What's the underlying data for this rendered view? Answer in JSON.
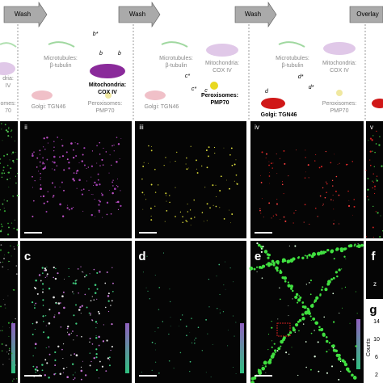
{
  "steps": [
    "Wash",
    "Wash",
    "Wash",
    "Overlay"
  ],
  "columns": [
    {
      "microtubules": [
        "Microtubules:",
        "β-tubulin"
      ],
      "mitochondria": [
        "Mitochondria:",
        "COX IV"
      ],
      "golgi": [
        "Golgi: TGN46"
      ],
      "peroxisomes": [
        "Peroxisomes:",
        "PMP70"
      ]
    },
    {
      "microtubules": [
        "Microtubules:",
        "β-tubulin"
      ],
      "mitochondria": [
        "Mitochondria:",
        "COX IV"
      ],
      "golgi": [
        "Golgi: TGN46"
      ],
      "peroxisomes": [
        "Peroxisomes:",
        "PMP70"
      ]
    },
    {
      "microtubules": [
        "Microtubules:",
        "β-tubulin"
      ],
      "mitochondria": [
        "Mitochondria:",
        "COX IV"
      ],
      "golgi": [
        "Golgi: TGN46"
      ],
      "peroxisomes": [
        "Peroxisomes:",
        "PMP70"
      ]
    }
  ],
  "edge_labels": [
    "dria:",
    "IV",
    "omes:",
    "70"
  ],
  "antibody_labels": [
    "b*",
    "b",
    "b",
    "c*",
    "c*",
    "c",
    "d*",
    "d*",
    "d"
  ],
  "image_panels": [
    "ii",
    "iii",
    "iv",
    "v"
  ],
  "panels": [
    "c",
    "d",
    "e",
    "f",
    "g"
  ],
  "histogram": {
    "ticks": [
      "14",
      "10",
      "6",
      "2"
    ],
    "axis_label": "Counts"
  },
  "axis_marker": "z"
}
